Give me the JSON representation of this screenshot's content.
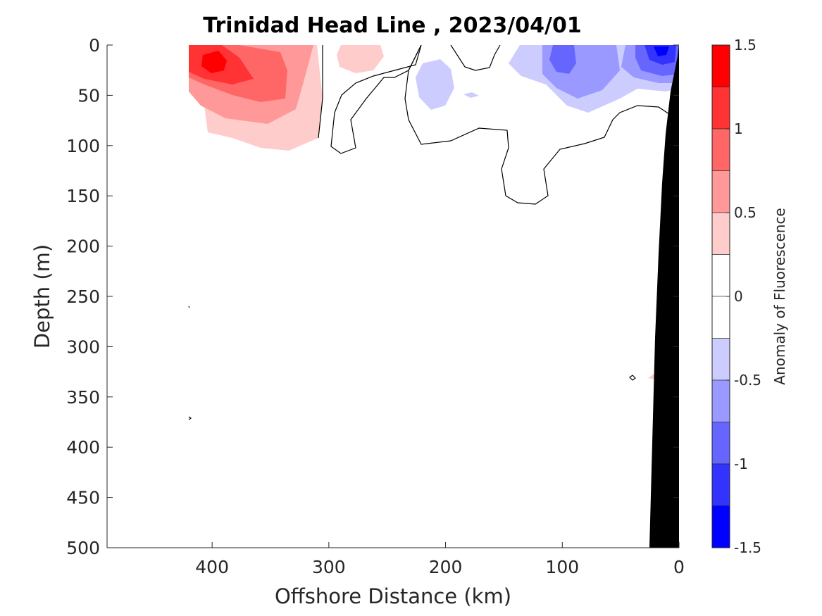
{
  "chart_data": {
    "type": "heatmap",
    "title": "Trinidad Head Line , 2023/04/01",
    "xlabel": "Offshore Distance (km)",
    "ylabel": "Depth (m)",
    "xlim": [
      490,
      0
    ],
    "ylim": [
      0,
      500
    ],
    "x_reversed": true,
    "y_reversed": true,
    "xticks": [
      400,
      300,
      200,
      100,
      0
    ],
    "yticks": [
      0,
      50,
      100,
      150,
      200,
      250,
      300,
      350,
      400,
      450,
      500
    ],
    "colorbar": {
      "label": "Anomaly of Fluorescence",
      "clim": [
        -1.5,
        1.5
      ],
      "ticks": [
        1.5,
        1,
        0.5,
        0,
        -0.5,
        -1,
        -1.5
      ],
      "tick_labels": [
        "1.5",
        "1",
        "0.5",
        "0",
        "-0.5",
        "-1",
        "-1.5"
      ],
      "levels": [
        {
          "range": [
            1.25,
            1.5
          ],
          "color": "#ff0000"
        },
        {
          "range": [
            1.0,
            1.25
          ],
          "color": "#ff3333"
        },
        {
          "range": [
            0.75,
            1.0
          ],
          "color": "#ff6666"
        },
        {
          "range": [
            0.5,
            0.75
          ],
          "color": "#ff9999"
        },
        {
          "range": [
            0.25,
            0.5
          ],
          "color": "#ffcccc"
        },
        {
          "range": [
            0.0,
            0.25
          ],
          "color": "#ffffff"
        },
        {
          "range": [
            -0.25,
            0.0
          ],
          "color": "#ffffff"
        },
        {
          "range": [
            -0.5,
            -0.25
          ],
          "color": "#ccccff"
        },
        {
          "range": [
            -0.75,
            -0.5
          ],
          "color": "#9999ff"
        },
        {
          "range": [
            -1.0,
            -0.75
          ],
          "color": "#6666ff"
        },
        {
          "range": [
            -1.25,
            -1.0
          ],
          "color": "#3333ff"
        },
        {
          "range": [
            -1.5,
            -1.25
          ],
          "color": "#0000ff"
        }
      ]
    },
    "anomaly_features": [
      {
        "name": "positive-core-offshore",
        "x_km": 400,
        "depth_m": 20,
        "max_anomaly": 1.4
      },
      {
        "name": "positive-lobe-offshore-east",
        "x_km": 365,
        "depth_m": 35,
        "max_anomaly": 1.0
      },
      {
        "name": "positive-patch-280km",
        "x_km": 265,
        "depth_m": 15,
        "max_anomaly": 0.4
      },
      {
        "name": "negative-patch-200km",
        "x_km": 210,
        "depth_m": 40,
        "max_anomaly": -0.4
      },
      {
        "name": "negative-core-100km",
        "x_km": 100,
        "depth_m": 20,
        "max_anomaly": -0.9
      },
      {
        "name": "negative-core-nearshore",
        "x_km": 18,
        "depth_m": 8,
        "max_anomaly": -1.4
      }
    ],
    "zero_contour": "encloses surface layer from about 305 km to the coast, deepest (~155 m) near 130 km",
    "bathymetry": {
      "color": "#000000",
      "bottom_depth_m": [
        [
          0,
          0
        ],
        [
          25,
          500
        ]
      ]
    }
  }
}
